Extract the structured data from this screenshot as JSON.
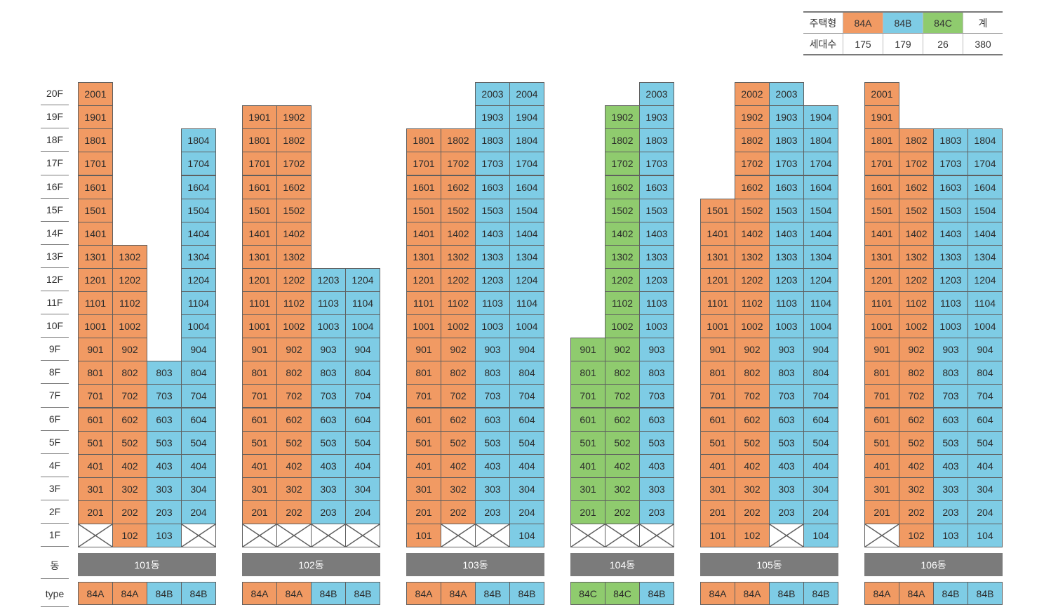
{
  "legend": {
    "header": [
      "주택형",
      "84A",
      "84B",
      "84C",
      "계"
    ],
    "row": [
      "세대수",
      "175",
      "179",
      "26",
      "380"
    ]
  },
  "colors": {
    "84A": "#f19a63",
    "84B": "#7ecce5",
    "84C": "#8fcb6e",
    "bar": "#7b7b7b"
  },
  "floors": [
    "20F",
    "19F",
    "18F",
    "17F",
    "16F",
    "15F",
    "14F",
    "13F",
    "12F",
    "11F",
    "10F",
    "9F",
    "8F",
    "7F",
    "6F",
    "5F",
    "4F",
    "3F",
    "2F",
    "1F"
  ],
  "row_labels": {
    "dong": "동",
    "type": "type"
  },
  "buildings": [
    {
      "name": "101동",
      "lines": [
        {
          "type": "84A",
          "units": [
            "2001",
            "1901",
            "1801",
            "1701",
            "1601",
            "1501",
            "1401",
            "1301",
            "1201",
            "1101",
            "1001",
            "901",
            "801",
            "701",
            "601",
            "501",
            "401",
            "301",
            "201",
            ""
          ]
        },
        {
          "type": "84A",
          "units": [
            "1302",
            "1202",
            "1102",
            "1002",
            "902",
            "802",
            "702",
            "602",
            "502",
            "402",
            "302",
            "202",
            "102"
          ]
        },
        {
          "type": "84B",
          "units": [
            "803",
            "703",
            "603",
            "503",
            "403",
            "303",
            "203",
            "103"
          ]
        },
        {
          "type": "84B",
          "units": [
            "1804",
            "1704",
            "1604",
            "1504",
            "1404",
            "1304",
            "1204",
            "1104",
            "1004",
            "904",
            "804",
            "704",
            "604",
            "504",
            "404",
            "304",
            "204",
            ""
          ]
        }
      ]
    },
    {
      "name": "102동",
      "lines": [
        {
          "type": "84A",
          "units": [
            "1901",
            "1801",
            "1701",
            "1601",
            "1501",
            "1401",
            "1301",
            "1201",
            "1101",
            "1001",
            "901",
            "801",
            "701",
            "601",
            "501",
            "401",
            "301",
            "201",
            ""
          ]
        },
        {
          "type": "84A",
          "units": [
            "1902",
            "1802",
            "1702",
            "1602",
            "1502",
            "1402",
            "1302",
            "1202",
            "1102",
            "1002",
            "902",
            "802",
            "702",
            "602",
            "502",
            "402",
            "302",
            "202",
            ""
          ]
        },
        {
          "type": "84B",
          "units": [
            "1203",
            "1103",
            "1003",
            "903",
            "803",
            "703",
            "603",
            "503",
            "403",
            "303",
            "203",
            ""
          ]
        },
        {
          "type": "84B",
          "units": [
            "1204",
            "1104",
            "1004",
            "904",
            "804",
            "704",
            "604",
            "504",
            "404",
            "304",
            "204",
            ""
          ]
        }
      ]
    },
    {
      "name": "103동",
      "lines": [
        {
          "type": "84A",
          "units": [
            "1801",
            "1701",
            "1601",
            "1501",
            "1401",
            "1301",
            "1201",
            "1101",
            "1001",
            "901",
            "801",
            "701",
            "601",
            "501",
            "401",
            "301",
            "201",
            "101"
          ]
        },
        {
          "type": "84A",
          "units": [
            "1802",
            "1702",
            "1602",
            "1502",
            "1402",
            "1302",
            "1202",
            "1102",
            "1002",
            "902",
            "802",
            "702",
            "602",
            "502",
            "402",
            "302",
            "202",
            ""
          ]
        },
        {
          "type": "84B",
          "units": [
            "2003",
            "1903",
            "1803",
            "1703",
            "1603",
            "1503",
            "1403",
            "1303",
            "1203",
            "1103",
            "1003",
            "903",
            "803",
            "703",
            "603",
            "503",
            "403",
            "303",
            "203",
            ""
          ]
        },
        {
          "type": "84B",
          "units": [
            "2004",
            "1904",
            "1804",
            "1704",
            "1604",
            "1504",
            "1404",
            "1304",
            "1204",
            "1104",
            "1004",
            "904",
            "804",
            "704",
            "604",
            "504",
            "404",
            "304",
            "204",
            "104"
          ]
        }
      ]
    },
    {
      "name": "104동",
      "lines": [
        {
          "type": "84C",
          "units": [
            "901",
            "801",
            "701",
            "601",
            "501",
            "401",
            "301",
            "201",
            ""
          ]
        },
        {
          "type": "84C",
          "units": [
            "1902",
            "1802",
            "1702",
            "1602",
            "1502",
            "1402",
            "1302",
            "1202",
            "1102",
            "1002",
            "902",
            "802",
            "702",
            "602",
            "502",
            "402",
            "302",
            "202",
            ""
          ]
        },
        {
          "type": "84B",
          "units": [
            "2003",
            "1903",
            "1803",
            "1703",
            "1603",
            "1503",
            "1403",
            "1303",
            "1203",
            "1103",
            "1003",
            "903",
            "803",
            "703",
            "603",
            "503",
            "403",
            "303",
            "203",
            ""
          ]
        }
      ]
    },
    {
      "name": "105동",
      "lines": [
        {
          "type": "84A",
          "units": [
            "1501",
            "1401",
            "1301",
            "1201",
            "1101",
            "1001",
            "901",
            "801",
            "701",
            "601",
            "501",
            "401",
            "301",
            "201",
            "101"
          ]
        },
        {
          "type": "84A",
          "units": [
            "2002",
            "1902",
            "1802",
            "1702",
            "1602",
            "1502",
            "1402",
            "1302",
            "1202",
            "1102",
            "1002",
            "902",
            "802",
            "702",
            "602",
            "502",
            "402",
            "302",
            "202",
            "102"
          ]
        },
        {
          "type": "84B",
          "units": [
            "2003",
            "1903",
            "1803",
            "1703",
            "1603",
            "1503",
            "1403",
            "1303",
            "1203",
            "1103",
            "1003",
            "903",
            "803",
            "703",
            "603",
            "503",
            "403",
            "303",
            "203",
            ""
          ]
        },
        {
          "type": "84B",
          "units": [
            "1904",
            "1804",
            "1704",
            "1604",
            "1504",
            "1404",
            "1304",
            "1204",
            "1104",
            "1004",
            "904",
            "804",
            "704",
            "604",
            "504",
            "404",
            "304",
            "204",
            "104"
          ]
        }
      ]
    },
    {
      "name": "106동",
      "lines": [
        {
          "type": "84A",
          "units": [
            "2001",
            "1901",
            "1801",
            "1701",
            "1601",
            "1501",
            "1401",
            "1301",
            "1201",
            "1101",
            "1001",
            "901",
            "801",
            "701",
            "601",
            "501",
            "401",
            "301",
            "201",
            ""
          ]
        },
        {
          "type": "84A",
          "units": [
            "1802",
            "1702",
            "1602",
            "1502",
            "1402",
            "1302",
            "1202",
            "1102",
            "1002",
            "902",
            "802",
            "702",
            "602",
            "502",
            "402",
            "302",
            "202",
            "102"
          ]
        },
        {
          "type": "84B",
          "units": [
            "1803",
            "1703",
            "1603",
            "1503",
            "1403",
            "1303",
            "1203",
            "1103",
            "1003",
            "903",
            "803",
            "703",
            "603",
            "503",
            "403",
            "303",
            "203",
            "103"
          ]
        },
        {
          "type": "84B",
          "units": [
            "1804",
            "1704",
            "1604",
            "1504",
            "1404",
            "1304",
            "1204",
            "1104",
            "1004",
            "904",
            "804",
            "704",
            "604",
            "504",
            "404",
            "304",
            "204",
            "104"
          ]
        }
      ]
    }
  ]
}
